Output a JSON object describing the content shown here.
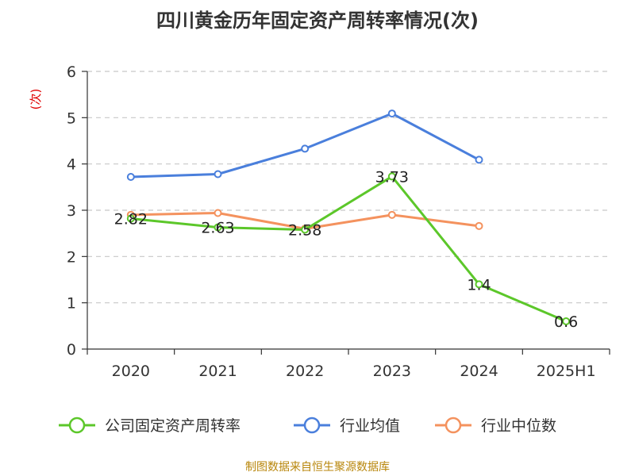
{
  "page": {
    "title": "四川黄金历年固定资产周转率情况(次)",
    "source": "制图数据来自恒生聚源数据库"
  },
  "chart_data": {
    "type": "line",
    "title": "四川黄金历年固定资产周转率情况(次)",
    "ylabel": "(次)",
    "xlabel": "",
    "categories": [
      "2020",
      "2021",
      "2022",
      "2023",
      "2024",
      "2025H1"
    ],
    "ylim": [
      0,
      6
    ],
    "yticks": [
      0,
      1,
      2,
      3,
      4,
      5,
      6
    ],
    "grid": true,
    "legend_position": "bottom",
    "series": [
      {
        "name": "公司固定资产周转率",
        "color": "#5cc72a",
        "values": [
          2.82,
          2.63,
          2.58,
          3.73,
          1.4,
          0.6
        ],
        "labels": [
          "2.82",
          "2.63",
          "2.58",
          "3.73",
          "1.4",
          "0.6"
        ]
      },
      {
        "name": "行业均值",
        "color": "#4a7fdc",
        "values": [
          3.72,
          3.78,
          4.33,
          5.09,
          4.09,
          null
        ]
      },
      {
        "name": "行业中位数",
        "color": "#f4925e",
        "values": [
          2.9,
          2.94,
          2.6,
          2.9,
          2.66,
          null
        ]
      }
    ]
  }
}
